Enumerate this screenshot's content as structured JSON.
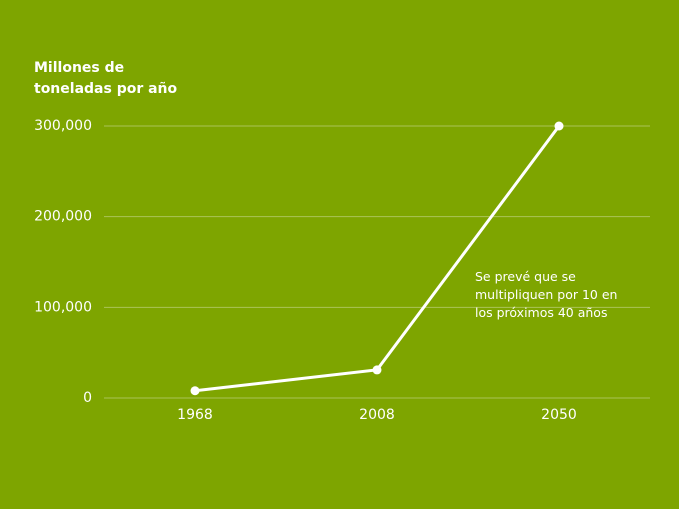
{
  "chart_data": {
    "type": "line",
    "y_label": "Millones de toneladas por año",
    "annotation": "Se prevé que se multipliquen por 10 en los próximos 40 años",
    "categories": [
      "1968",
      "2008",
      "2050"
    ],
    "values": [
      8000,
      31000,
      300000
    ],
    "color": "#ffffff",
    "ylim": [
      0,
      300000
    ],
    "yticks": [
      0,
      {
        "value": 100000,
        "label": "100,000"
      },
      {
        "value": 200000,
        "label": "200,000"
      },
      {
        "value": 300000,
        "label": "300,000"
      }
    ],
    "grid": true
  }
}
